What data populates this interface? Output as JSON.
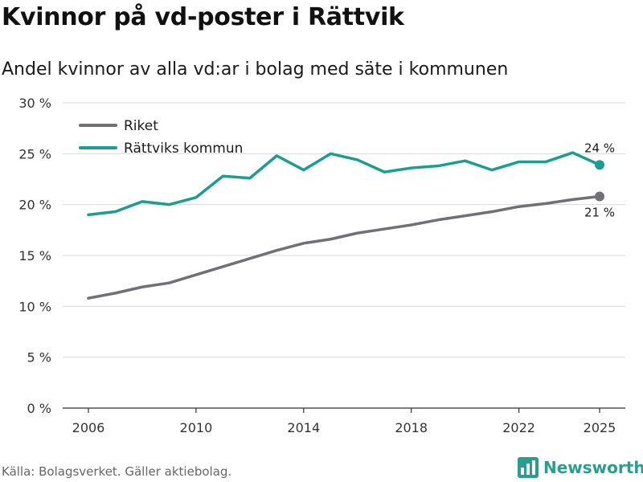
{
  "header": {
    "title": "Kvinnor på vd-poster i Rättvik",
    "subtitle": "Andel kvinnor av alla vd:ar i bolag med säte i kommunen"
  },
  "footer": {
    "source": "Källa: Bolagsverket. Gäller aktiebolag.",
    "brand": "Newsworthy",
    "brand_icon": "bar-chart-logo-icon"
  },
  "chart_data": {
    "type": "line",
    "title": "Kvinnor på vd-poster i Rättvik",
    "subtitle": "Andel kvinnor av alla vd:ar i bolag med säte i kommunen",
    "xlabel": "",
    "ylabel": "",
    "x": [
      2006,
      2007,
      2008,
      2009,
      2010,
      2011,
      2012,
      2013,
      2014,
      2015,
      2016,
      2017,
      2018,
      2019,
      2020,
      2021,
      2022,
      2023,
      2024,
      2025
    ],
    "x_ticks": [
      2006,
      2010,
      2014,
      2018,
      2022,
      2025
    ],
    "x_tick_labels": [
      "2006",
      "2010",
      "2014",
      "2018",
      "2022",
      "2025"
    ],
    "ylim": [
      0,
      30
    ],
    "y_ticks": [
      0,
      5,
      10,
      15,
      20,
      25,
      30
    ],
    "y_tick_labels": [
      "0 %",
      "5 %",
      "10 %",
      "15 %",
      "20 %",
      "25 %",
      "30 %"
    ],
    "grid": true,
    "legend_position": "top-left",
    "series": [
      {
        "name": "Riket",
        "color": "#707075",
        "values": [
          10.8,
          11.3,
          11.9,
          12.3,
          13.1,
          13.9,
          14.7,
          15.5,
          16.2,
          16.6,
          17.2,
          17.6,
          18.0,
          18.5,
          18.9,
          19.3,
          19.8,
          20.1,
          20.5,
          20.8
        ],
        "end_label": "21 %"
      },
      {
        "name": "Rättviks kommun",
        "color": "#1a9e8f",
        "values": [
          19.0,
          19.3,
          20.3,
          20.0,
          20.7,
          22.8,
          22.6,
          24.8,
          23.4,
          25.0,
          24.4,
          23.2,
          23.6,
          23.8,
          24.3,
          23.4,
          24.2,
          24.2,
          25.1,
          23.9
        ],
        "end_label": "24 %"
      }
    ]
  }
}
